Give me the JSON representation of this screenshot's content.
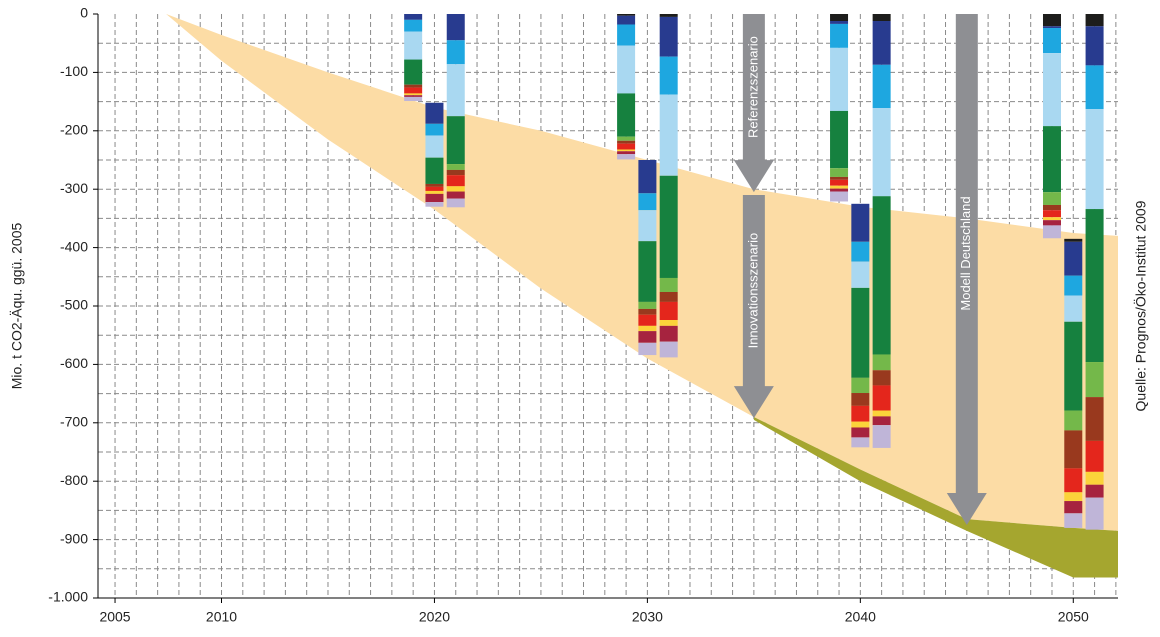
{
  "chart_data": {
    "type": "combo",
    "ylabel": "Mio. t CO2-Äqu. ggü. 2005",
    "source": "Quelle: Prognos/Öko-Institut  2009",
    "xlim": [
      2004.2,
      2052.1
    ],
    "xticks": [
      2005,
      2010,
      2020,
      2030,
      2040,
      2050
    ],
    "xgrid": [
      2005,
      2006,
      2007,
      2008,
      2009,
      2010,
      2011,
      2012,
      2013,
      2014,
      2015,
      2016,
      2017,
      2018,
      2019,
      2020,
      2021,
      2022,
      2023,
      2024,
      2025,
      2026,
      2027,
      2028,
      2029,
      2030,
      2031,
      2032,
      2033,
      2034,
      2035,
      2036,
      2037,
      2038,
      2039,
      2040,
      2041,
      2042,
      2043,
      2044,
      2045,
      2046,
      2047,
      2048,
      2049,
      2050,
      2051,
      2052
    ],
    "ylim": [
      -1000,
      0
    ],
    "yticks": [
      0,
      -100,
      -200,
      -300,
      -400,
      -500,
      -600,
      -700,
      -800,
      -900,
      {
        "value": -1000,
        "label": "-1.000"
      }
    ],
    "ygrid": [
      -50,
      -100,
      -150,
      -200,
      -250,
      -300,
      -350,
      -400,
      -450,
      -500,
      -550,
      -600,
      -650,
      -700,
      -750,
      -800,
      -850,
      -900,
      -950
    ],
    "grid": true,
    "areas": [
      {
        "color": "#fcdca5",
        "x": [
          2007.4,
          2010,
          2015,
          2020,
          2025,
          2030,
          2035,
          2040,
          2045,
          2050,
          2052.1
        ],
        "upper": [
          0,
          -36,
          -100,
          -160,
          -200,
          -250,
          -300,
          -330,
          -350,
          -375,
          -380
        ],
        "lower": [
          0,
          -80,
          -215,
          -335,
          -470,
          -590,
          -690,
          -780,
          -865,
          -880,
          -885
        ]
      },
      {
        "color": "#a5a62f",
        "x": [
          2035,
          2040,
          2045,
          2050,
          2052.1
        ],
        "upper": [
          -690,
          -780,
          -865,
          -880,
          -885
        ],
        "lower": [
          -695,
          -800,
          -885,
          -965,
          -965
        ]
      }
    ],
    "bar_x": [
      2019,
      2020,
      2021,
      2029,
      2030,
      2031,
      2039,
      2040,
      2041,
      2049,
      2050,
      2051
    ],
    "bar_base": [
      0,
      -152,
      0,
      0,
      -250,
      0,
      0,
      -325,
      0,
      0,
      -385,
      0
    ],
    "series": [
      {
        "color": "#1d1d1b",
        "values": [
          0,
          0,
          0,
          -3,
          0,
          -5,
          -12,
          0,
          -12,
          -21,
          -5,
          -21
        ]
      },
      {
        "color": "#283b8f",
        "values": [
          -10,
          -36,
          -45,
          -15,
          -57,
          -68,
          -5,
          -65,
          -75,
          -3,
          -58,
          -67
        ]
      },
      {
        "color": "#1ea7e0",
        "values": [
          -20,
          -20,
          -41,
          -36,
          -29,
          -65,
          -41,
          -34,
          -74,
          -43,
          -34,
          -75
        ]
      },
      {
        "color": "#a9d8f1",
        "values": [
          -48,
          -38,
          -89,
          -82,
          -53,
          -139,
          -108,
          -45,
          -151,
          -125,
          -45,
          -171
        ]
      },
      {
        "color": "#16813f",
        "values": [
          -43,
          -45,
          -82,
          -74,
          -104,
          -175,
          -98,
          -154,
          -271,
          -113,
          -152,
          -262
        ]
      },
      {
        "color": "#74b84a",
        "values": [
          0,
          0,
          -10,
          -7,
          -12,
          -24,
          -15,
          -26,
          -27,
          -22,
          -34,
          -60
        ]
      },
      {
        "color": "#99391e",
        "values": [
          -5,
          -5,
          -9,
          -5,
          -10,
          -17,
          -5,
          -22,
          -26,
          -9,
          -65,
          -75
        ]
      },
      {
        "color": "#e4261c",
        "values": [
          -10,
          -7,
          -19,
          -10,
          -19,
          -31,
          -10,
          -27,
          -43,
          -12,
          -41,
          -53
        ]
      },
      {
        "color": "#fbd33a",
        "values": [
          -3,
          -5,
          -9,
          -3,
          -9,
          -10,
          -5,
          -10,
          -10,
          -5,
          -15,
          -22
        ]
      },
      {
        "color": "#a6233f",
        "values": [
          -3,
          -14,
          -12,
          -5,
          -20,
          -27,
          -5,
          -17,
          -15,
          -9,
          -21,
          -22
        ]
      },
      {
        "color": "#bfb5d8",
        "values": [
          -7,
          -8,
          -15,
          -9,
          -21,
          -27,
          -17,
          -17,
          -39,
          -22,
          -25,
          -55
        ]
      }
    ],
    "arrows": [
      {
        "text": "Referenzszenario",
        "x": 2035,
        "from": 0,
        "to": -305,
        "color": "#8e8f93"
      },
      {
        "text": "Innovationsszenario",
        "x": 2035,
        "from": -310,
        "to": -692,
        "color": "#8e8f93"
      },
      {
        "text": "Modell Deutschland",
        "x": 2045,
        "from": 0,
        "to": -875,
        "color": "#8e8f93"
      }
    ]
  }
}
